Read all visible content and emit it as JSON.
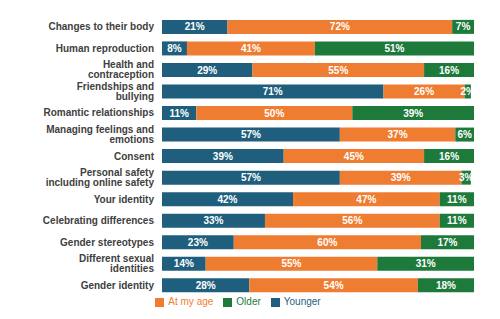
{
  "chart_data": {
    "type": "bar",
    "orientation": "horizontal",
    "stacked": true,
    "data_labels": true,
    "tick_labels": "y",
    "legend": "bottom",
    "xlim": [
      0,
      100
    ],
    "categories": [
      "Changes to their body",
      "Human reproduction",
      "Health and contraception",
      "Friendships and bullying",
      "Romantic relationships",
      "Managing feelings and emotions",
      "Consent",
      "Personal safety including online safety",
      "Your identity",
      "Celebrating differences",
      "Gender stereotypes",
      "Different sexual identities",
      "Gender identity"
    ],
    "series": [
      {
        "name": "Younger",
        "color": "#1f5f7d",
        "values": [
          21,
          8,
          29,
          71,
          11,
          57,
          39,
          57,
          42,
          33,
          23,
          14,
          28
        ],
        "value_labels": [
          "21%",
          "8%",
          "29%",
          "71%",
          "11%",
          "57%",
          "39%",
          "57%",
          "42%",
          "33%",
          "23%",
          "14%",
          "28%"
        ]
      },
      {
        "name": "At my age",
        "color": "#ef7d31",
        "values": [
          72,
          41,
          55,
          26,
          50,
          37,
          45,
          39,
          47,
          56,
          60,
          55,
          54
        ],
        "value_labels": [
          "72%",
          "41%",
          "55%",
          "26%",
          "50%",
          "37%",
          "45%",
          "39%",
          "47%",
          "56%",
          "60%",
          "55%",
          "54%"
        ]
      },
      {
        "name": "Older",
        "color": "#1e7a3b",
        "values": [
          7,
          51,
          16,
          2,
          39,
          6,
          16,
          3,
          11,
          11,
          17,
          31,
          18
        ],
        "value_labels": [
          "7%",
          "51%",
          "16%",
          "2%",
          "39%",
          "6%",
          "16%",
          "3%",
          "11%",
          "11%",
          "17%",
          "31%",
          "18%"
        ]
      }
    ]
  }
}
